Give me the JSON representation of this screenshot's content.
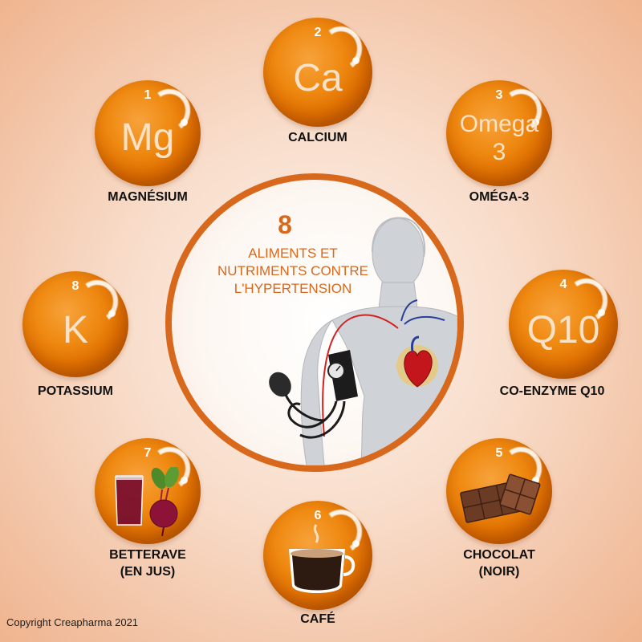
{
  "center": {
    "number": "8",
    "line1": "ALIMENTS ET",
    "line2": "NUTRIMENTS CONTRE",
    "line3": "L'HYPERTENSION"
  },
  "items": [
    {
      "number": "1",
      "symbol": "Mg",
      "label": "MAGNÉSIUM"
    },
    {
      "number": "2",
      "symbol": "Ca",
      "label": "CALCIUM"
    },
    {
      "number": "3",
      "symbol_line1": "Omega",
      "symbol_line2": "3",
      "label": "OMÉGA-3"
    },
    {
      "number": "4",
      "symbol": "Q10",
      "label": "CO-ENZYME Q10"
    },
    {
      "number": "5",
      "label_line1": "CHOCOLAT",
      "label_line2": "(NOIR)"
    },
    {
      "number": "6",
      "label": "CAFÉ"
    },
    {
      "number": "7",
      "label_line1": "BETTERAVE",
      "label_line2": "(EN JUS)"
    },
    {
      "number": "8",
      "symbol": "K",
      "label": "POTASSIUM"
    }
  ],
  "copyright": "Copyright Creapharma 2021",
  "colors": {
    "orange": "#ef8a12",
    "ring": "#d8681c"
  }
}
